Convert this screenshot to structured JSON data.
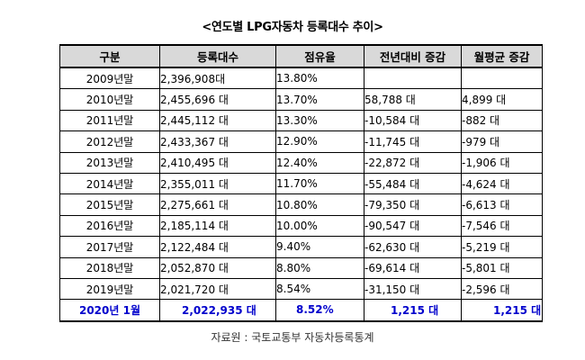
{
  "title": "<연도별 LPG자동차 등록대수 추이>",
  "table": {
    "headers": [
      "구분",
      "등록대수",
      "점유율",
      "전년대비 증감",
      "월평균 증감"
    ],
    "rows": [
      {
        "year": "2009년말",
        "registered": "2,396,908대",
        "share": "13.80%",
        "yoy": "",
        "monthly": ""
      },
      {
        "year": "2010년말",
        "registered": "2,455,696 대",
        "share": "13.70%",
        "yoy": "58,788 대",
        "monthly": "4,899 대"
      },
      {
        "year": "2011년말",
        "registered": "2,445,112 대",
        "share": "13.30%",
        "yoy": "-10,584 대",
        "monthly": "-882 대"
      },
      {
        "year": "2012년말",
        "registered": "2,433,367 대",
        "share": "12.90%",
        "yoy": "-11,745 대",
        "monthly": "-979 대"
      },
      {
        "year": "2013년말",
        "registered": "2,410,495 대",
        "share": "12.40%",
        "yoy": "-22,872 대",
        "monthly": "-1,906 대"
      },
      {
        "year": "2014년말",
        "registered": "2,355,011 대",
        "share": "11.70%",
        "yoy": "-55,484 대",
        "monthly": "-4,624 대"
      },
      {
        "year": "2015년말",
        "registered": "2,275,661 대",
        "share": "10.80%",
        "yoy": "-79,350 대",
        "monthly": "-6,613 대"
      },
      {
        "year": "2016년말",
        "registered": "2,185,114 대",
        "share": "10.00%",
        "yoy": "-90,547 대",
        "monthly": "-7,546 대"
      },
      {
        "year": "2017년말",
        "registered": "2,122,484 대",
        "share": "9.40%",
        "yoy": "-62,630 대",
        "monthly": "-5,219 대"
      },
      {
        "year": "2018년말",
        "registered": "2,052,870 대",
        "share": "8.80%",
        "yoy": "-69,614 대",
        "monthly": "-5,801 대"
      },
      {
        "year": "2019년말",
        "registered": "2,021,720 대",
        "share": "8.54%",
        "yoy": "-31,150 대",
        "monthly": "-2,596 대"
      }
    ],
    "highlight_row": {
      "year": "2020년 1월",
      "registered": "2,022,935 대",
      "share": "8.52%",
      "yoy": "1,215 대",
      "monthly": "1,215 대"
    }
  },
  "source": "자료원 : 국토교통부 자동차등록통계",
  "colors": {
    "header_bg": "#d9d9d9",
    "highlight_text": "#0000cc",
    "border": "#000000"
  }
}
